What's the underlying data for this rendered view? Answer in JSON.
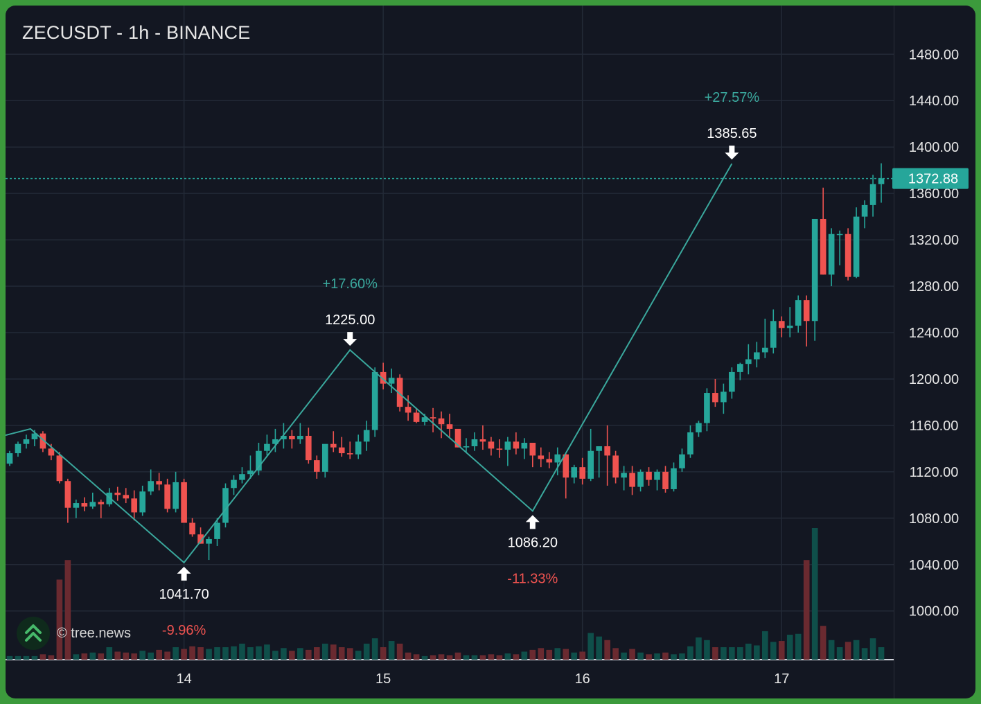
{
  "header": {
    "title": "ZECUSDT - 1h - BINANCE"
  },
  "watermark": {
    "text": "© tree.news",
    "icon": "double-chevron-up-icon"
  },
  "colors": {
    "background": "#131722",
    "grid": "#232a37",
    "up": "#26a69a",
    "down": "#ef5350",
    "up_volume": "#0f4f4a",
    "down_volume": "#6a2a30",
    "zigzag": "#3aa89d",
    "positive_text": "#3aa89d",
    "negative_text": "#ef5350",
    "price_tag": "#26a69a"
  },
  "chart_data": {
    "type": "candlestick",
    "symbol": "ZECUSDT",
    "interval": "1h",
    "exchange": "BINANCE",
    "y_ticks": [
      1000,
      1040,
      1080,
      1120,
      1160,
      1200,
      1240,
      1280,
      1320,
      1360,
      1400,
      1440,
      1480
    ],
    "y_tick_labels": [
      "1000.00",
      "1040.00",
      "1080.00",
      "1120.00",
      "1160.00",
      "1200.00",
      "1240.00",
      "1280.00",
      "1320.00",
      "1360.00",
      "1400.00",
      "1440.00",
      "1480.00"
    ],
    "ylim": [
      958,
      1522
    ],
    "x_range_hours": [
      -21.5,
      85.5
    ],
    "x_ticks": [
      {
        "label": "14",
        "hour": 0
      },
      {
        "label": "15",
        "hour": 24
      },
      {
        "label": "16",
        "hour": 48
      },
      {
        "label": "17",
        "hour": 72
      }
    ],
    "last_price": 1372.88,
    "last_price_label": "1372.88",
    "grid": true,
    "ohlcv": [
      [
        -22,
        1128,
        1131,
        1124,
        1127,
        3
      ],
      [
        -21,
        1127,
        1138,
        1125,
        1136,
        4
      ],
      [
        -20,
        1136,
        1146,
        1133,
        1144,
        4
      ],
      [
        -19,
        1144,
        1152,
        1140,
        1148,
        4
      ],
      [
        -18,
        1148,
        1156,
        1142,
        1153,
        4
      ],
      [
        -17,
        1153,
        1155,
        1137,
        1140,
        6
      ],
      [
        -16,
        1140,
        1144,
        1130,
        1134,
        5
      ],
      [
        -15,
        1134,
        1137,
        1110,
        1112,
        90
      ],
      [
        -14,
        1112,
        1114,
        1076,
        1089,
        112
      ],
      [
        -13,
        1089,
        1096,
        1080,
        1093,
        6
      ],
      [
        -12,
        1093,
        1098,
        1086,
        1090,
        7
      ],
      [
        -11,
        1090,
        1102,
        1088,
        1094,
        8
      ],
      [
        -10,
        1094,
        1096,
        1080,
        1092,
        7
      ],
      [
        -9,
        1092,
        1106,
        1090,
        1102,
        14
      ],
      [
        -8,
        1102,
        1107,
        1095,
        1100,
        9
      ],
      [
        -7,
        1100,
        1106,
        1093,
        1097,
        8
      ],
      [
        -6,
        1097,
        1104,
        1078,
        1085,
        7
      ],
      [
        -5,
        1085,
        1108,
        1082,
        1103,
        10
      ],
      [
        -4,
        1103,
        1122,
        1100,
        1112,
        8
      ],
      [
        -3,
        1112,
        1119,
        1104,
        1109,
        11
      ],
      [
        -2,
        1109,
        1114,
        1085,
        1088,
        9
      ],
      [
        -1,
        1088,
        1120,
        1085,
        1111,
        14
      ],
      [
        0,
        1111,
        1114,
        1078,
        1076,
        12
      ],
      [
        1,
        1076,
        1080,
        1064,
        1066,
        15
      ],
      [
        2,
        1066,
        1072,
        1058,
        1058,
        14
      ],
      [
        3,
        1058,
        1064,
        1044,
        1062,
        12
      ],
      [
        4,
        1062,
        1080,
        1056,
        1076,
        14
      ],
      [
        5,
        1076,
        1110,
        1072,
        1106,
        14
      ],
      [
        6,
        1106,
        1117,
        1100,
        1113,
        15
      ],
      [
        7,
        1113,
        1124,
        1110,
        1118,
        18
      ],
      [
        8,
        1118,
        1134,
        1114,
        1121,
        14
      ],
      [
        9,
        1121,
        1145,
        1117,
        1138,
        15
      ],
      [
        10,
        1138,
        1152,
        1134,
        1144,
        17
      ],
      [
        11,
        1144,
        1157,
        1137,
        1148,
        10
      ],
      [
        12,
        1148,
        1162,
        1140,
        1151,
        13
      ],
      [
        13,
        1151,
        1156,
        1140,
        1148,
        10
      ],
      [
        14,
        1148,
        1162,
        1144,
        1151,
        13
      ],
      [
        15,
        1151,
        1158,
        1127,
        1130,
        11
      ],
      [
        16,
        1130,
        1134,
        1114,
        1120,
        14
      ],
      [
        17,
        1120,
        1140,
        1115,
        1144,
        18
      ],
      [
        18,
        1144,
        1155,
        1137,
        1141,
        17
      ],
      [
        19,
        1141,
        1150,
        1133,
        1136,
        14
      ],
      [
        20,
        1136,
        1146,
        1131,
        1135,
        13
      ],
      [
        21,
        1135,
        1152,
        1131,
        1146,
        10
      ],
      [
        22,
        1146,
        1164,
        1138,
        1156,
        18
      ],
      [
        23,
        1156,
        1210,
        1150,
        1206,
        24
      ],
      [
        24,
        1206,
        1214,
        1191,
        1196,
        14
      ],
      [
        25,
        1196,
        1209,
        1188,
        1201,
        21
      ],
      [
        26,
        1201,
        1204,
        1172,
        1176,
        18
      ],
      [
        27,
        1176,
        1186,
        1164,
        1171,
        8
      ],
      [
        28,
        1171,
        1175,
        1162,
        1163,
        6
      ],
      [
        29,
        1163,
        1170,
        1160,
        1167,
        4
      ],
      [
        30,
        1167,
        1175,
        1154,
        1166,
        5
      ],
      [
        31,
        1166,
        1172,
        1149,
        1161,
        6
      ],
      [
        32,
        1161,
        1170,
        1150,
        1157,
        5
      ],
      [
        33,
        1157,
        1155,
        1141,
        1141,
        8
      ],
      [
        34,
        1141,
        1149,
        1136,
        1142,
        5
      ],
      [
        35,
        1142,
        1154,
        1138,
        1148,
        5
      ],
      [
        36,
        1148,
        1160,
        1139,
        1146,
        5
      ],
      [
        37,
        1146,
        1150,
        1134,
        1140,
        6
      ],
      [
        38,
        1140,
        1148,
        1132,
        1139,
        5
      ],
      [
        39,
        1139,
        1150,
        1125,
        1146,
        7
      ],
      [
        40,
        1146,
        1154,
        1135,
        1140,
        6
      ],
      [
        41,
        1140,
        1149,
        1131,
        1145,
        9
      ],
      [
        42,
        1145,
        1145,
        1124,
        1134,
        11
      ],
      [
        43,
        1134,
        1141,
        1124,
        1131,
        13
      ],
      [
        44,
        1131,
        1137,
        1123,
        1128,
        11
      ],
      [
        45,
        1128,
        1141,
        1117,
        1135,
        13
      ],
      [
        46,
        1135,
        1136,
        1097,
        1115,
        12
      ],
      [
        47,
        1115,
        1126,
        1110,
        1124,
        8
      ],
      [
        48,
        1124,
        1132,
        1109,
        1114,
        9
      ],
      [
        49,
        1114,
        1157,
        1112,
        1138,
        30
      ],
      [
        50,
        1138,
        1142,
        1115,
        1142,
        26
      ],
      [
        51,
        1142,
        1160,
        1108,
        1134,
        22
      ],
      [
        52,
        1134,
        1138,
        1110,
        1115,
        13
      ],
      [
        53,
        1115,
        1125,
        1104,
        1119,
        8
      ],
      [
        54,
        1119,
        1125,
        1100,
        1107,
        12
      ],
      [
        55,
        1107,
        1122,
        1103,
        1120,
        8
      ],
      [
        56,
        1120,
        1124,
        1108,
        1113,
        6
      ],
      [
        57,
        1113,
        1122,
        1104,
        1120,
        7
      ],
      [
        58,
        1120,
        1125,
        1102,
        1105,
        8
      ],
      [
        59,
        1105,
        1128,
        1103,
        1123,
        6
      ],
      [
        60,
        1123,
        1140,
        1120,
        1135,
        7
      ],
      [
        61,
        1135,
        1160,
        1132,
        1154,
        15
      ],
      [
        62,
        1154,
        1164,
        1150,
        1162,
        25
      ],
      [
        63,
        1162,
        1192,
        1155,
        1188,
        22
      ],
      [
        64,
        1188,
        1200,
        1176,
        1180,
        14
      ],
      [
        65,
        1180,
        1196,
        1170,
        1189,
        14
      ],
      [
        66,
        1189,
        1210,
        1183,
        1206,
        14
      ],
      [
        67,
        1206,
        1214,
        1199,
        1213,
        14
      ],
      [
        68,
        1213,
        1230,
        1204,
        1217,
        18
      ],
      [
        69,
        1217,
        1232,
        1210,
        1223,
        16
      ],
      [
        70,
        1223,
        1252,
        1218,
        1227,
        32
      ],
      [
        71,
        1227,
        1260,
        1222,
        1250,
        20
      ],
      [
        72,
        1250,
        1254,
        1236,
        1244,
        21
      ],
      [
        73,
        1244,
        1262,
        1236,
        1246,
        28
      ],
      [
        74,
        1246,
        1272,
        1240,
        1268,
        29
      ],
      [
        75,
        1268,
        1272,
        1228,
        1250,
        112
      ],
      [
        76,
        1250,
        1338,
        1233,
        1338,
        148
      ],
      [
        77,
        1338,
        1365,
        1290,
        1290,
        38
      ],
      [
        78,
        1290,
        1330,
        1280,
        1325,
        22
      ],
      [
        79,
        1325,
        1328,
        1298,
        1325,
        14
      ],
      [
        80,
        1325,
        1330,
        1285,
        1288,
        20
      ],
      [
        81,
        1288,
        1348,
        1287,
        1340,
        22
      ],
      [
        82,
        1340,
        1354,
        1330,
        1350,
        13
      ],
      [
        83,
        1350,
        1376,
        1340,
        1368,
        24
      ],
      [
        84,
        1368,
        1386,
        1352,
        1373,
        14
      ]
    ],
    "zigzag": [
      {
        "hour": -30.5,
        "price": 1135
      },
      {
        "hour": -18.5,
        "price": 1157
      },
      {
        "hour": 0,
        "price": 1041.7
      },
      {
        "hour": 20,
        "price": 1225.0
      },
      {
        "hour": 42,
        "price": 1086.2
      },
      {
        "hour": 66,
        "price": 1385.65
      }
    ],
    "pivot_labels": [
      {
        "hour": 0,
        "price": 1041.7,
        "text": "1041.70",
        "kind": "low",
        "change": "-9.96%"
      },
      {
        "hour": 20,
        "price": 1225.0,
        "text": "1225.00",
        "kind": "high",
        "change": "+17.60%"
      },
      {
        "hour": 42,
        "price": 1086.2,
        "text": "1086.20",
        "kind": "low",
        "change": "-11.33%"
      },
      {
        "hour": 66,
        "price": 1385.65,
        "text": "1385.65",
        "kind": "high",
        "change": "+27.57%"
      }
    ]
  }
}
